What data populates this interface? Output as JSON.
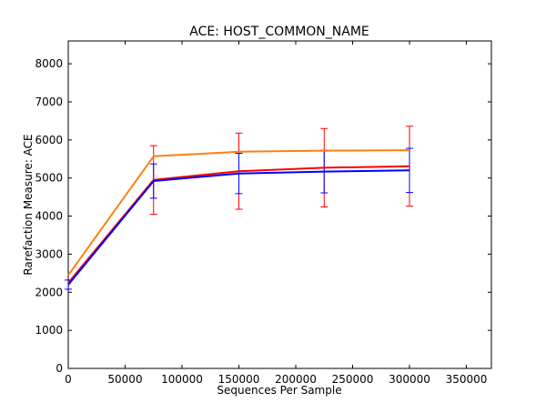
{
  "chart_data": {
    "type": "line",
    "title": "ACE: HOST_COMMON_NAME",
    "xlabel": "Sequences Per Sample",
    "ylabel": "Rarefaction Measure: ACE",
    "xlim": [
      0,
      372000
    ],
    "ylim": [
      0,
      8600
    ],
    "xticks": [
      0,
      50000,
      100000,
      150000,
      200000,
      250000,
      300000,
      350000
    ],
    "xtick_labels": [
      "0",
      "50000",
      "100000",
      "150000",
      "200000",
      "250000",
      "300000",
      "350000"
    ],
    "yticks": [
      0,
      1000,
      2000,
      3000,
      4000,
      5000,
      6000,
      7000,
      8000
    ],
    "ytick_labels": [
      "0",
      "1000",
      "2000",
      "3000",
      "4000",
      "5000",
      "6000",
      "7000",
      "8000"
    ],
    "grid": false,
    "legend": false,
    "series": [
      {
        "color": "#ff0000",
        "x": [
          100,
          75000,
          150000,
          225000,
          300000
        ],
        "y": [
          2250,
          4950,
          5180,
          5270,
          5310
        ],
        "err": [
          0,
          900,
          1000,
          1030,
          1050
        ]
      },
      {
        "color": "#0000ff",
        "x": [
          100,
          75000,
          150000,
          225000,
          300000
        ],
        "y": [
          2200,
          4920,
          5120,
          5170,
          5200
        ],
        "err": [
          120,
          450,
          530,
          560,
          580
        ]
      },
      {
        "color": "#ff7f0e",
        "x": [
          100,
          75000,
          150000,
          225000,
          300000
        ],
        "y": [
          2450,
          5570,
          5690,
          5720,
          5730
        ],
        "err": [
          0,
          0,
          0,
          0,
          0
        ]
      }
    ]
  }
}
